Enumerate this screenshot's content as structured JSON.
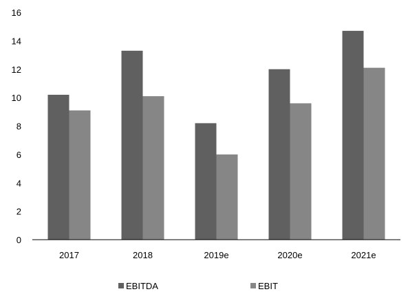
{
  "chart_data": {
    "type": "bar",
    "categories": [
      "2017",
      "2018",
      "2019e",
      "2020e",
      "2021e"
    ],
    "series": [
      {
        "name": "EBITDA",
        "values": [
          10.2,
          13.3,
          8.2,
          12.0,
          14.7
        ],
        "color": "#606060"
      },
      {
        "name": "EBIT",
        "values": [
          9.1,
          10.1,
          6.0,
          9.6,
          12.1
        ],
        "color": "#868686"
      }
    ],
    "ylim": [
      0,
      16
    ],
    "yticks": [
      0,
      2,
      4,
      6,
      8,
      10,
      12,
      14,
      16
    ],
    "grid": false,
    "legend_position": "bottom",
    "title": "",
    "xlabel": "",
    "ylabel": ""
  }
}
